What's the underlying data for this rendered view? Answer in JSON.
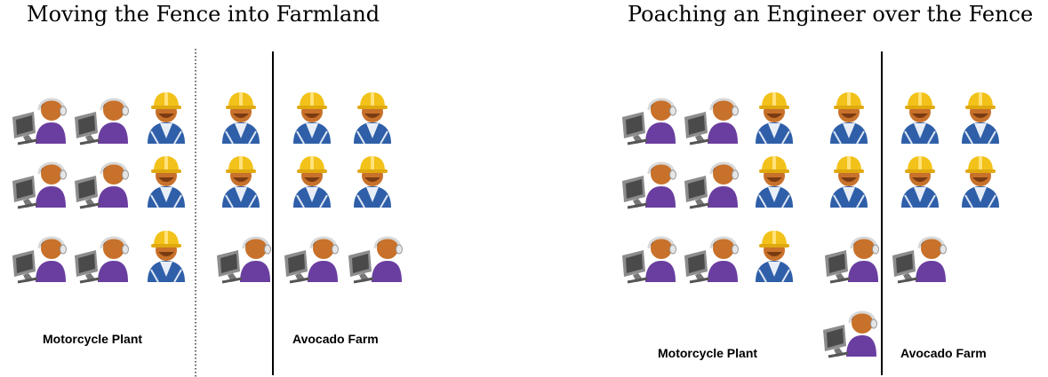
{
  "left": {
    "title": "Moving the Fence into Farmland",
    "plant_label": "Motorcycle Plant",
    "farm_label": "Avocado Farm"
  },
  "right": {
    "title": "Poaching an Engineer over the Fence",
    "plant_label": "Motorcycle Plant",
    "farm_label": "Avocado Farm"
  },
  "icons": {
    "engineer": "engineer-with-computer-icon",
    "worker": "hardhat-worker-icon"
  },
  "colors": {
    "worker_helmet": "#f2c21a",
    "worker_shirt": "#2f5fa8",
    "engineer_shirt": "#6a3ea0",
    "skin": "#c8712b",
    "monitor": "#6e6e6e",
    "fence": "#000000"
  }
}
